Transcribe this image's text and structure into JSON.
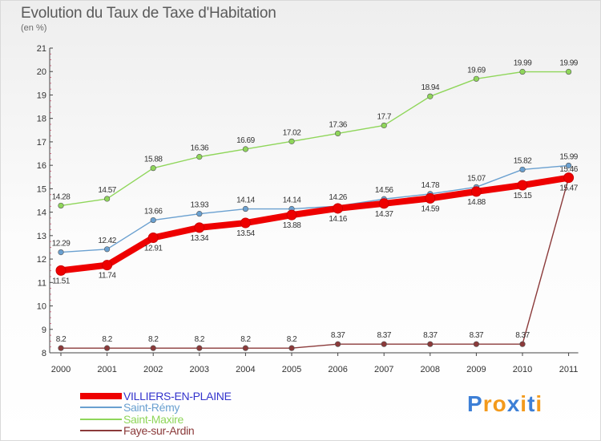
{
  "chart_data": {
    "type": "line",
    "title": "Evolution du Taux de Taxe d'Habitation",
    "ylabel": "(en %)",
    "xlabel": "",
    "categories": [
      "2000",
      "2001",
      "2002",
      "2003",
      "2004",
      "2005",
      "2006",
      "2007",
      "2008",
      "2009",
      "2010",
      "2011"
    ],
    "ylim": [
      8,
      21
    ],
    "yticks": [
      "8",
      "9",
      "10",
      "11",
      "12",
      "13",
      "14",
      "15",
      "16",
      "17",
      "18",
      "19",
      "20",
      "21"
    ],
    "grid": false,
    "legend_position": "bottom-left",
    "series": [
      {
        "name": "VILLIERS-EN-PLAINE",
        "color": "#ee0000",
        "legend_color": "#3333cc",
        "values": [
          11.51,
          11.74,
          12.91,
          13.34,
          13.54,
          13.88,
          14.16,
          14.37,
          14.59,
          14.88,
          15.15,
          15.47
        ],
        "labels": [
          "11.51",
          "11.74",
          "12.91",
          "13.34",
          "13.54",
          "13.88",
          "14.16",
          "14.37",
          "14.59",
          "14.88",
          "15.15",
          "15.47"
        ]
      },
      {
        "name": "Saint-Rémy",
        "color": "#6aa0d0",
        "legend_color": "#6aa0d0",
        "values": [
          12.29,
          12.42,
          13.66,
          13.93,
          14.14,
          14.14,
          14.26,
          14.56,
          14.78,
          15.07,
          15.82,
          15.99
        ],
        "labels": [
          "12.29",
          "12.42",
          "13.66",
          "13.93",
          "14.14",
          "14.14",
          "14.26",
          "14.56",
          "14.78",
          "15.07",
          "15.82",
          "15.99"
        ]
      },
      {
        "name": "Saint-Maxire",
        "color": "#8fd65a",
        "legend_color": "#8fd65a",
        "values": [
          14.28,
          14.57,
          15.88,
          16.36,
          16.69,
          17.02,
          17.36,
          17.7,
          18.94,
          19.69,
          19.99,
          19.99
        ],
        "labels": [
          "14.28",
          "14.57",
          "15.88",
          "16.36",
          "16.69",
          "17.02",
          "17.36",
          "17.7",
          "18.94",
          "19.69",
          "19.99",
          "19.99"
        ]
      },
      {
        "name": "Faye-sur-Ardin",
        "color": "#8b3a3a",
        "legend_color": "#8b3a3a",
        "values": [
          8.2,
          8.2,
          8.2,
          8.2,
          8.2,
          8.2,
          8.37,
          8.37,
          8.37,
          8.37,
          8.37,
          15.46
        ],
        "labels": [
          "8.2",
          "8.2",
          "8.2",
          "8.2",
          "8.2",
          "8.2",
          "8.37",
          "8.37",
          "8.37",
          "8.37",
          "8.37",
          "15.46"
        ]
      }
    ]
  },
  "logo": {
    "letters": [
      {
        "ch": "P",
        "color": "#3d7fd6"
      },
      {
        "ch": "r",
        "color": "#f39a1c"
      },
      {
        "ch": "o",
        "color": "#f39a1c"
      },
      {
        "ch": "x",
        "color": "#3d7fd6"
      },
      {
        "ch": "i",
        "color": "#f39a1c"
      },
      {
        "ch": "t",
        "color": "#3d7fd6"
      },
      {
        "ch": "i",
        "color": "#f39a1c"
      }
    ]
  }
}
